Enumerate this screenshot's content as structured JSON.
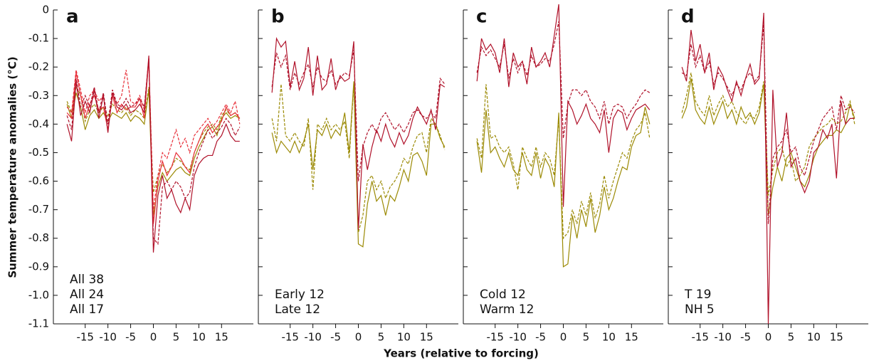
{
  "ylabel": "Summer temperature anomalies (°C)",
  "xlabel": "Years (relative to forcing)",
  "chart_data": [
    {
      "type": "line",
      "panel": "a",
      "x": [
        -19,
        -18,
        -17,
        -16,
        -15,
        -14,
        -13,
        -12,
        -11,
        -10,
        -9,
        -8,
        -7,
        -6,
        -5,
        -4,
        -3,
        -2,
        -1,
        0,
        1,
        2,
        3,
        4,
        5,
        6,
        7,
        8,
        9,
        10,
        11,
        12,
        13,
        14,
        15,
        16,
        17,
        18,
        19
      ],
      "xlim": [
        -22,
        22
      ],
      "xticks": [
        -15,
        -10,
        -5,
        0,
        5,
        10,
        15
      ],
      "ylim": [
        -1.1,
        0
      ],
      "yticks": [
        0,
        -0.1,
        -0.2,
        -0.3,
        -0.4,
        -0.5,
        -0.6,
        -0.7,
        -0.8,
        -0.9,
        {
          "value": -1,
          "label": "-1.0"
        },
        -1.1
      ],
      "series": [
        {
          "name": "All 38",
          "color": "#9b8a05",
          "values": [
            -0.33,
            -0.38,
            -0.29,
            -0.34,
            -0.42,
            -0.37,
            -0.35,
            -0.38,
            -0.36,
            -0.39,
            -0.36,
            -0.37,
            -0.38,
            -0.36,
            -0.39,
            -0.37,
            -0.38,
            -0.4,
            -0.28,
            -0.72,
            -0.62,
            -0.57,
            -0.6,
            -0.58,
            -0.56,
            -0.55,
            -0.57,
            -0.58,
            -0.52,
            -0.48,
            -0.45,
            -0.42,
            -0.41,
            -0.44,
            -0.38,
            -0.36,
            -0.38,
            -0.37,
            -0.38
          ],
          "dashed_values": [
            -0.32,
            -0.36,
            -0.27,
            -0.3,
            -0.39,
            -0.35,
            -0.33,
            -0.36,
            -0.34,
            -0.37,
            -0.33,
            -0.35,
            -0.36,
            -0.34,
            -0.37,
            -0.35,
            -0.36,
            -0.38,
            -0.27,
            -0.64,
            -0.58,
            -0.54,
            -0.57,
            -0.55,
            -0.52,
            -0.53,
            -0.55,
            -0.56,
            -0.5,
            -0.46,
            -0.43,
            -0.41,
            -0.4,
            -0.42,
            -0.37,
            -0.35,
            -0.37,
            -0.36,
            -0.38
          ]
        },
        {
          "name": "All 24",
          "color": "#e8303a",
          "values": [
            -0.36,
            -0.38,
            -0.22,
            -0.3,
            -0.38,
            -0.33,
            -0.3,
            -0.35,
            -0.34,
            -0.42,
            -0.3,
            -0.36,
            -0.33,
            -0.35,
            -0.34,
            -0.34,
            -0.31,
            -0.38,
            -0.17,
            -0.75,
            -0.6,
            -0.53,
            -0.58,
            -0.55,
            -0.5,
            -0.52,
            -0.55,
            -0.57,
            -0.5,
            -0.46,
            -0.42,
            -0.4,
            -0.43,
            -0.41,
            -0.39,
            -0.34,
            -0.37,
            -0.36,
            -0.38
          ],
          "dashed_values": [
            -0.34,
            -0.36,
            -0.21,
            -0.28,
            -0.36,
            -0.3,
            -0.28,
            -0.32,
            -0.3,
            -0.4,
            -0.28,
            -0.33,
            -0.3,
            -0.21,
            -0.32,
            -0.33,
            -0.3,
            -0.35,
            -0.18,
            -0.7,
            -0.58,
            -0.5,
            -0.52,
            -0.47,
            -0.42,
            -0.48,
            -0.45,
            -0.5,
            -0.44,
            -0.42,
            -0.4,
            -0.38,
            -0.41,
            -0.39,
            -0.36,
            -0.33,
            -0.36,
            -0.32,
            -0.4
          ]
        },
        {
          "name": "All 17",
          "color": "#b0122a",
          "values": [
            -0.4,
            -0.46,
            -0.25,
            -0.37,
            -0.32,
            -0.36,
            -0.28,
            -0.38,
            -0.3,
            -0.43,
            -0.29,
            -0.34,
            -0.35,
            -0.33,
            -0.36,
            -0.35,
            -0.33,
            -0.36,
            -0.16,
            -0.85,
            -0.65,
            -0.58,
            -0.66,
            -0.63,
            -0.68,
            -0.71,
            -0.66,
            -0.7,
            -0.58,
            -0.54,
            -0.52,
            -0.51,
            -0.51,
            -0.46,
            -0.44,
            -0.4,
            -0.44,
            -0.46,
            -0.46
          ],
          "dashed_values": [
            -0.37,
            -0.42,
            -0.24,
            -0.34,
            -0.3,
            -0.34,
            -0.27,
            -0.36,
            -0.29,
            -0.4,
            -0.28,
            -0.33,
            -0.34,
            -0.31,
            -0.34,
            -0.33,
            -0.31,
            -0.34,
            -0.17,
            -0.8,
            -0.82,
            -0.62,
            -0.6,
            -0.63,
            -0.6,
            -0.62,
            -0.66,
            -0.64,
            -0.55,
            -0.5,
            -0.46,
            -0.42,
            -0.45,
            -0.43,
            -0.41,
            -0.38,
            -0.4,
            -0.44,
            -0.41
          ]
        }
      ]
    },
    {
      "type": "line",
      "panel": "b",
      "x": [
        -19,
        -18,
        -17,
        -16,
        -15,
        -14,
        -13,
        -12,
        -11,
        -10,
        -9,
        -8,
        -7,
        -6,
        -5,
        -4,
        -3,
        -2,
        -1,
        0,
        1,
        2,
        3,
        4,
        5,
        6,
        7,
        8,
        9,
        10,
        11,
        12,
        13,
        14,
        15,
        16,
        17,
        18,
        19
      ],
      "xlim": [
        -22,
        22
      ],
      "xticks": [
        -15,
        -10,
        -5,
        0,
        5,
        10,
        15
      ],
      "ylim": [
        -1.1,
        0
      ],
      "yticks": [
        0,
        -0.1,
        -0.2,
        -0.3,
        -0.4,
        -0.5,
        -0.6,
        -0.7,
        -0.8,
        -0.9,
        -1,
        -1.1
      ],
      "series": [
        {
          "name": "Early 12",
          "color": "#9b8a05",
          "values": [
            -0.43,
            -0.5,
            -0.46,
            -0.48,
            -0.5,
            -0.46,
            -0.5,
            -0.46,
            -0.4,
            -0.56,
            -0.42,
            -0.44,
            -0.4,
            -0.45,
            -0.42,
            -0.44,
            -0.36,
            -0.5,
            -0.25,
            -0.82,
            -0.83,
            -0.68,
            -0.6,
            -0.67,
            -0.65,
            -0.72,
            -0.65,
            -0.67,
            -0.62,
            -0.56,
            -0.6,
            -0.51,
            -0.5,
            -0.53,
            -0.58,
            -0.4,
            -0.4,
            -0.45,
            -0.48
          ],
          "dashed_values": [
            -0.38,
            -0.46,
            -0.26,
            -0.44,
            -0.46,
            -0.43,
            -0.46,
            -0.48,
            -0.38,
            -0.63,
            -0.4,
            -0.42,
            -0.38,
            -0.42,
            -0.4,
            -0.42,
            -0.39,
            -0.52,
            -0.26,
            -0.78,
            -0.72,
            -0.6,
            -0.58,
            -0.63,
            -0.6,
            -0.66,
            -0.62,
            -0.6,
            -0.57,
            -0.52,
            -0.54,
            -0.48,
            -0.44,
            -0.43,
            -0.5,
            -0.38,
            -0.4,
            -0.44,
            -0.49
          ]
        },
        {
          "name": "Late 12",
          "color": "#b0122a",
          "values": [
            -0.29,
            -0.1,
            -0.13,
            -0.11,
            -0.27,
            -0.18,
            -0.28,
            -0.24,
            -0.13,
            -0.3,
            -0.16,
            -0.28,
            -0.26,
            -0.17,
            -0.28,
            -0.23,
            -0.25,
            -0.24,
            -0.11,
            -0.77,
            -0.47,
            -0.56,
            -0.48,
            -0.42,
            -0.46,
            -0.4,
            -0.45,
            -0.48,
            -0.43,
            -0.47,
            -0.44,
            -0.38,
            -0.34,
            -0.37,
            -0.4,
            -0.35,
            -0.42,
            -0.26,
            -0.27
          ],
          "dashed_values": [
            -0.27,
            -0.15,
            -0.2,
            -0.16,
            -0.28,
            -0.22,
            -0.26,
            -0.22,
            -0.19,
            -0.27,
            -0.2,
            -0.24,
            -0.25,
            -0.21,
            -0.26,
            -0.24,
            -0.22,
            -0.23,
            -0.14,
            -0.6,
            -0.48,
            -0.43,
            -0.4,
            -0.43,
            -0.38,
            -0.36,
            -0.39,
            -0.42,
            -0.4,
            -0.43,
            -0.4,
            -0.36,
            -0.35,
            -0.37,
            -0.38,
            -0.36,
            -0.38,
            -0.24,
            -0.26
          ]
        }
      ]
    },
    {
      "type": "line",
      "panel": "c",
      "x": [
        -19,
        -18,
        -17,
        -16,
        -15,
        -14,
        -13,
        -12,
        -11,
        -10,
        -9,
        -8,
        -7,
        -6,
        -5,
        -4,
        -3,
        -2,
        -1,
        0,
        1,
        2,
        3,
        4,
        5,
        6,
        7,
        8,
        9,
        10,
        11,
        12,
        13,
        14,
        15,
        16,
        17,
        18,
        19
      ],
      "xlim": [
        -22,
        22
      ],
      "xticks": [
        -15,
        -10,
        -5,
        0,
        5,
        10,
        15
      ],
      "ylim": [
        -1.1,
        0
      ],
      "yticks": [
        0,
        -0.1,
        -0.2,
        -0.3,
        -0.4,
        -0.5,
        -0.6,
        -0.7,
        -0.8,
        -0.9,
        -1,
        -1.1
      ],
      "series": [
        {
          "name": "Cold 12",
          "color": "#9b8a05",
          "values": [
            -0.46,
            -0.57,
            -0.35,
            -0.5,
            -0.48,
            -0.52,
            -0.55,
            -0.5,
            -0.56,
            -0.58,
            -0.5,
            -0.56,
            -0.58,
            -0.5,
            -0.59,
            -0.52,
            -0.55,
            -0.62,
            -0.36,
            -0.9,
            -0.89,
            -0.72,
            -0.8,
            -0.7,
            -0.76,
            -0.66,
            -0.78,
            -0.72,
            -0.62,
            -0.7,
            -0.66,
            -0.6,
            -0.55,
            -0.56,
            -0.48,
            -0.44,
            -0.43,
            -0.34,
            -0.4
          ],
          "dashed_values": [
            -0.45,
            -0.52,
            -0.26,
            -0.45,
            -0.44,
            -0.48,
            -0.5,
            -0.48,
            -0.54,
            -0.63,
            -0.48,
            -0.52,
            -0.55,
            -0.48,
            -0.55,
            -0.5,
            -0.52,
            -0.58,
            -0.38,
            -0.8,
            -0.78,
            -0.7,
            -0.75,
            -0.67,
            -0.72,
            -0.64,
            -0.73,
            -0.68,
            -0.58,
            -0.66,
            -0.6,
            -0.55,
            -0.5,
            -0.52,
            -0.46,
            -0.42,
            -0.4,
            -0.36,
            -0.45
          ]
        },
        {
          "name": "Warm 12",
          "color": "#b0122a",
          "values": [
            -0.25,
            -0.1,
            -0.14,
            -0.12,
            -0.15,
            -0.22,
            -0.1,
            -0.27,
            -0.15,
            -0.2,
            -0.18,
            -0.26,
            -0.13,
            -0.2,
            -0.18,
            -0.15,
            -0.2,
            -0.09,
            0.02,
            -0.69,
            -0.32,
            -0.35,
            -0.4,
            -0.37,
            -0.33,
            -0.38,
            -0.4,
            -0.43,
            -0.35,
            -0.5,
            -0.38,
            -0.35,
            -0.36,
            -0.42,
            -0.38,
            -0.35,
            -0.34,
            -0.33,
            -0.35
          ],
          "dashed_values": [
            -0.22,
            -0.13,
            -0.16,
            -0.14,
            -0.17,
            -0.2,
            -0.12,
            -0.24,
            -0.17,
            -0.22,
            -0.18,
            -0.23,
            -0.16,
            -0.2,
            -0.19,
            -0.17,
            -0.18,
            -0.12,
            -0.04,
            -0.45,
            -0.33,
            -0.28,
            -0.28,
            -0.3,
            -0.28,
            -0.32,
            -0.34,
            -0.38,
            -0.32,
            -0.4,
            -0.34,
            -0.33,
            -0.34,
            -0.38,
            -0.35,
            -0.33,
            -0.3,
            -0.28,
            -0.29
          ]
        }
      ]
    },
    {
      "type": "line",
      "panel": "d",
      "x": [
        -19,
        -18,
        -17,
        -16,
        -15,
        -14,
        -13,
        -12,
        -11,
        -10,
        -9,
        -8,
        -7,
        -6,
        -5,
        -4,
        -3,
        -2,
        -1,
        0,
        1,
        2,
        3,
        4,
        5,
        6,
        7,
        8,
        9,
        10,
        11,
        12,
        13,
        14,
        15,
        16,
        17,
        18,
        19
      ],
      "xlim": [
        -22,
        22
      ],
      "xticks": [
        -15,
        -10,
        -5,
        0,
        5,
        10,
        15
      ],
      "ylim": [
        -1.1,
        0
      ],
      "yticks": [
        0,
        -0.1,
        -0.2,
        -0.3,
        -0.4,
        -0.5,
        -0.6,
        -0.7,
        -0.8,
        -0.9,
        -1,
        -1.1
      ],
      "series": [
        {
          "name": "T 19",
          "color": "#9b8a05",
          "values": [
            -0.38,
            -0.34,
            -0.24,
            -0.35,
            -0.38,
            -0.4,
            -0.34,
            -0.4,
            -0.36,
            -0.32,
            -0.38,
            -0.35,
            -0.4,
            -0.34,
            -0.38,
            -0.36,
            -0.4,
            -0.36,
            -0.26,
            -0.72,
            -0.62,
            -0.55,
            -0.6,
            -0.52,
            -0.5,
            -0.55,
            -0.6,
            -0.62,
            -0.58,
            -0.52,
            -0.48,
            -0.46,
            -0.44,
            -0.44,
            -0.42,
            -0.43,
            -0.4,
            -0.33,
            -0.38
          ],
          "dashed_values": [
            -0.36,
            -0.3,
            -0.22,
            -0.32,
            -0.35,
            -0.37,
            -0.3,
            -0.37,
            -0.33,
            -0.3,
            -0.34,
            -0.32,
            -0.36,
            -0.38,
            -0.4,
            -0.37,
            -0.38,
            -0.34,
            -0.25,
            -0.65,
            -0.56,
            -0.5,
            -0.48,
            -0.55,
            -0.52,
            -0.6,
            -0.58,
            -0.55,
            -0.48,
            -0.45,
            -0.43,
            -0.41,
            -0.4,
            -0.38,
            -0.4,
            -0.39,
            -0.36,
            -0.32,
            -0.4
          ]
        },
        {
          "name": "NH 5",
          "color": "#b0122a",
          "values": [
            -0.2,
            -0.25,
            -0.07,
            -0.18,
            -0.12,
            -0.22,
            -0.15,
            -0.28,
            -0.2,
            -0.23,
            -0.28,
            -0.32,
            -0.25,
            -0.3,
            -0.24,
            -0.19,
            -0.26,
            -0.24,
            -0.01,
            -1.1,
            -0.28,
            -0.55,
            -0.5,
            -0.36,
            -0.55,
            -0.52,
            -0.6,
            -0.64,
            -0.6,
            -0.5,
            -0.48,
            -0.42,
            -0.45,
            -0.4,
            -0.59,
            -0.32,
            -0.4,
            -0.38,
            -0.38
          ],
          "dashed_values": [
            -0.22,
            -0.23,
            -0.12,
            -0.2,
            -0.16,
            -0.22,
            -0.18,
            -0.26,
            -0.22,
            -0.24,
            -0.27,
            -0.3,
            -0.26,
            -0.28,
            -0.24,
            -0.22,
            -0.25,
            -0.23,
            -0.05,
            -0.75,
            -0.52,
            -0.48,
            -0.46,
            -0.42,
            -0.5,
            -0.48,
            -0.55,
            -0.58,
            -0.52,
            -0.46,
            -0.42,
            -0.38,
            -0.36,
            -0.34,
            -0.42,
            -0.3,
            -0.35,
            -0.34,
            -0.36
          ]
        }
      ]
    }
  ]
}
